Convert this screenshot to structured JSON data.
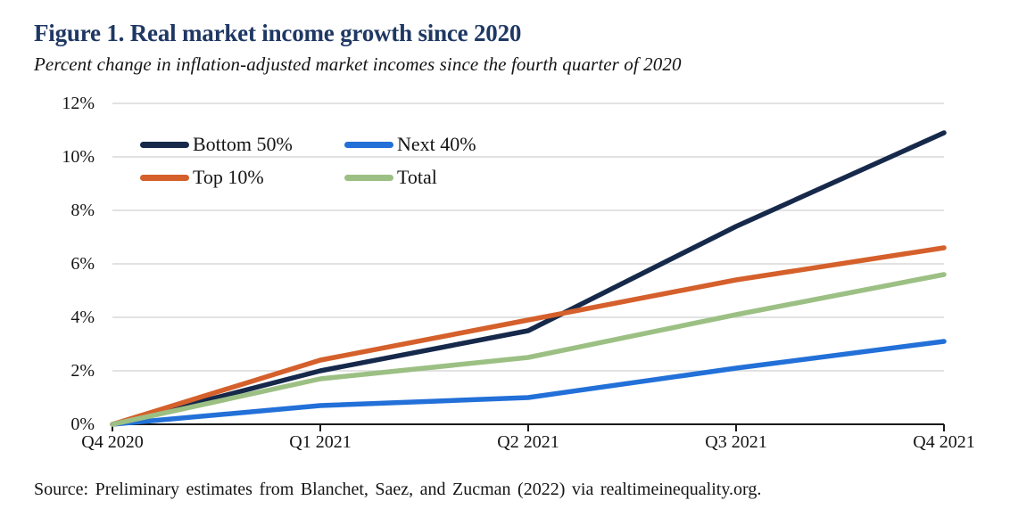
{
  "source": "Source: Preliminary estimates from Blanchet, Saez, and Zucman (2022) via realtimeinequality.org.",
  "colors": {
    "title_text": "#1f3864",
    "grid": "#d9d9d9",
    "axis": "#1a1a1a",
    "body_text": "#141414"
  },
  "chart_data": {
    "type": "line",
    "title": "Figure 1. Real market income growth since 2020",
    "subtitle": "Percent change in inflation-adjusted market incomes since the fourth quarter of 2020",
    "categories": [
      "Q4 2020",
      "Q1 2021",
      "Q2 2021",
      "Q3 2021",
      "Q4 2021"
    ],
    "series": [
      {
        "name": "Bottom 50%",
        "color": "#16294b",
        "values": [
          0,
          2.0,
          3.5,
          7.4,
          10.9
        ]
      },
      {
        "name": "Next 40%",
        "color": "#2270d8",
        "values": [
          0,
          0.7,
          1.0,
          2.1,
          3.1
        ]
      },
      {
        "name": "Top 10%",
        "color": "#d5602b",
        "values": [
          0,
          2.4,
          3.9,
          5.4,
          6.6
        ]
      },
      {
        "name": "Total",
        "color": "#9cc084",
        "values": [
          0,
          1.7,
          2.5,
          4.1,
          5.6
        ]
      }
    ],
    "xlabel": "",
    "ylabel": "",
    "ylim": [
      0,
      12
    ],
    "y_tick_labels": [
      "0%",
      "2%",
      "4%",
      "6%",
      "8%",
      "10%",
      "12%"
    ],
    "grid": "horizontal",
    "legend_position": "inside-top-left",
    "legend_layout": "2-columns-2-rows"
  }
}
